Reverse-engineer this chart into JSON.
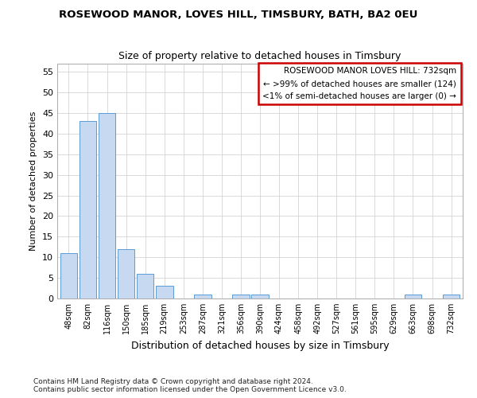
{
  "title": "ROSEWOOD MANOR, LOVES HILL, TIMSBURY, BATH, BA2 0EU",
  "subtitle": "Size of property relative to detached houses in Timsbury",
  "xlabel": "Distribution of detached houses by size in Timsbury",
  "ylabel": "Number of detached properties",
  "bar_color": "#c6d9f0",
  "bar_edge_color": "#5b9bd5",
  "categories": [
    "48sqm",
    "82sqm",
    "116sqm",
    "150sqm",
    "185sqm",
    "219sqm",
    "253sqm",
    "287sqm",
    "321sqm",
    "356sqm",
    "390sqm",
    "424sqm",
    "458sqm",
    "492sqm",
    "527sqm",
    "561sqm",
    "595sqm",
    "629sqm",
    "663sqm",
    "698sqm",
    "732sqm"
  ],
  "values": [
    11,
    43,
    45,
    12,
    6,
    3,
    0,
    1,
    0,
    1,
    1,
    0,
    0,
    0,
    0,
    0,
    0,
    0,
    1,
    0,
    1
  ],
  "ylim": [
    0,
    57
  ],
  "yticks": [
    0,
    5,
    10,
    15,
    20,
    25,
    30,
    35,
    40,
    45,
    50,
    55
  ],
  "annotation_box_color": "#ffffff",
  "annotation_box_edge_color": "#cc0000",
  "annotation_line1": "ROSEWOOD MANOR LOVES HILL: 732sqm",
  "annotation_line2": "← >99% of detached houses are smaller (124)",
  "annotation_line3": "<1% of semi-detached houses are larger (0) →",
  "footer_line1": "Contains HM Land Registry data © Crown copyright and database right 2024.",
  "footer_line2": "Contains public sector information licensed under the Open Government Licence v3.0.",
  "background_color": "#ffffff",
  "grid_color": "#cccccc"
}
